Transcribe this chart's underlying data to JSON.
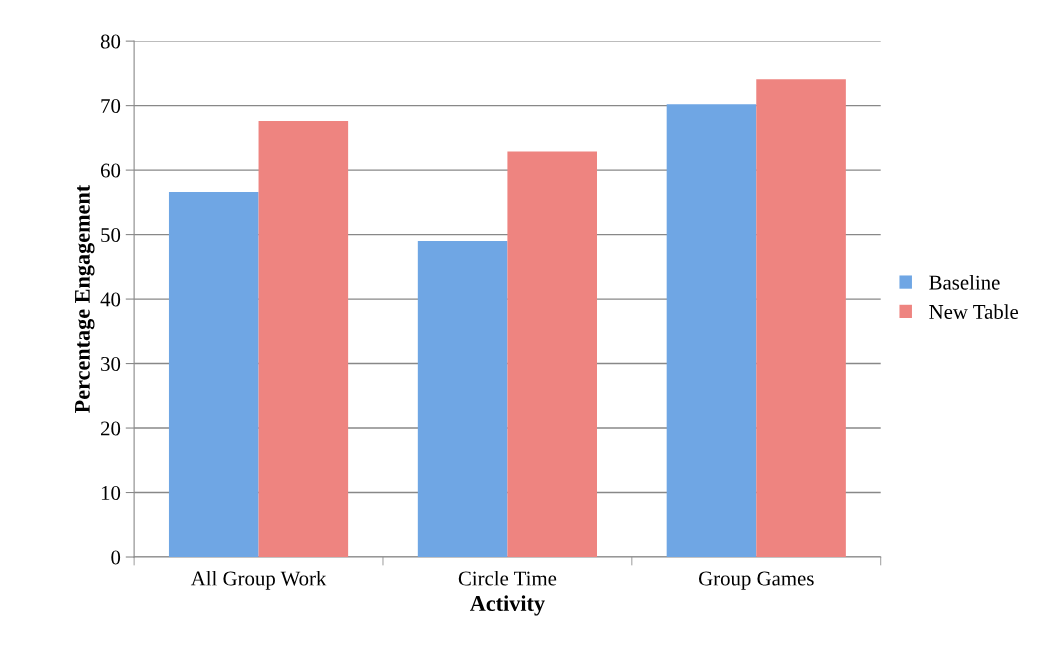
{
  "chart_data": {
    "type": "bar",
    "xlabel": "Activity",
    "ylabel": "Percentage Engagement",
    "categories": [
      "All Group Work",
      "Circle Time",
      "Group Games"
    ],
    "series": [
      {
        "name": "Baseline",
        "color": "#6fa6e4",
        "values": [
          56.6,
          49.0,
          70.2
        ]
      },
      {
        "name": "New Table",
        "color": "#ee8480",
        "values": [
          67.6,
          62.9,
          74.1
        ]
      }
    ],
    "ylim": [
      0,
      80
    ],
    "yticks": [
      0,
      10,
      20,
      30,
      40,
      50,
      60,
      70,
      80
    ],
    "grid": "y",
    "legend": "right"
  }
}
